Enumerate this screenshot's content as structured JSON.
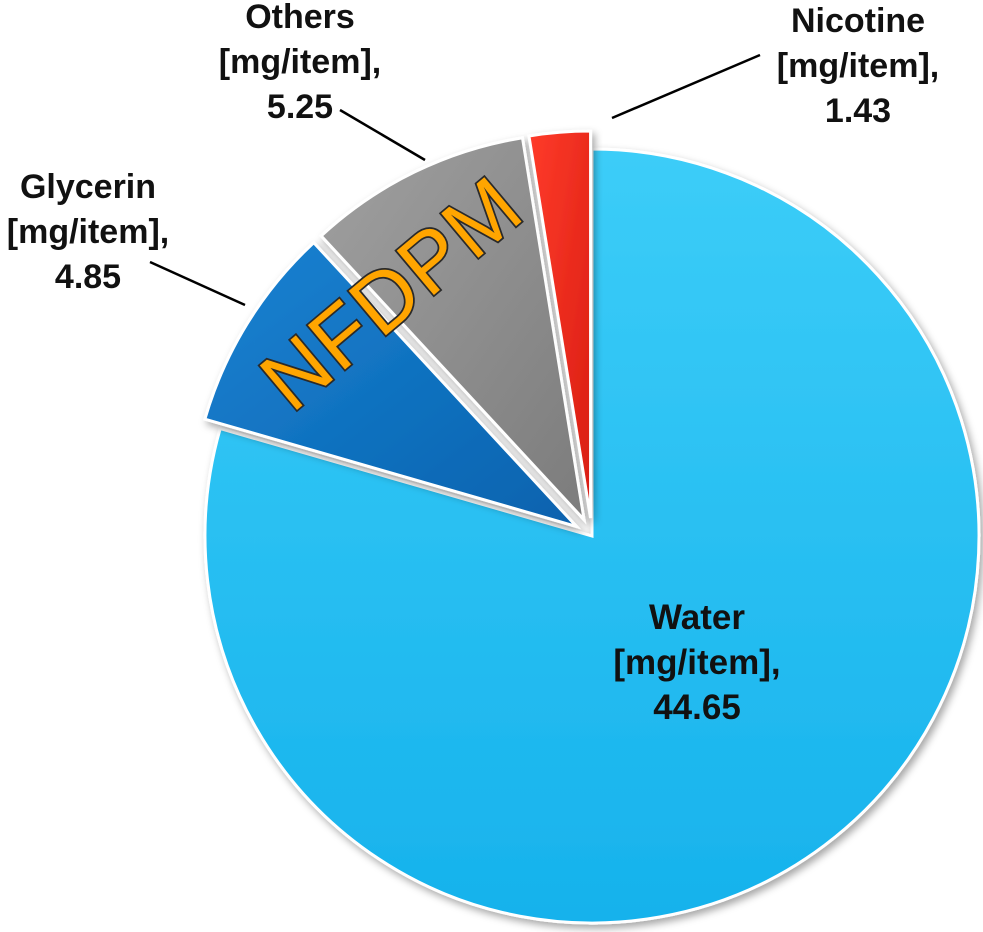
{
  "chart_data": {
    "type": "pie",
    "title": "",
    "overlay_label": "NFDPM",
    "start_angle_deg": 0,
    "slices": [
      {
        "name": "Water",
        "unit": "[mg/item],",
        "value": 44.65,
        "value_label": "44.65",
        "color": "#1ebbf2",
        "exploded": false
      },
      {
        "name": "Glycerin",
        "unit": "[mg/item],",
        "value": 4.85,
        "value_label": "4.85",
        "color": "#0a6fc0",
        "exploded": true
      },
      {
        "name": "Others",
        "unit": "[mg/item],",
        "value": 5.25,
        "value_label": "5.25",
        "color": "#8e8e8e",
        "exploded": true
      },
      {
        "name": "Nicotine",
        "unit": "[mg/item],",
        "value": 1.43,
        "value_label": "1.43",
        "color": "#ee2a1c",
        "exploded": true
      }
    ]
  }
}
